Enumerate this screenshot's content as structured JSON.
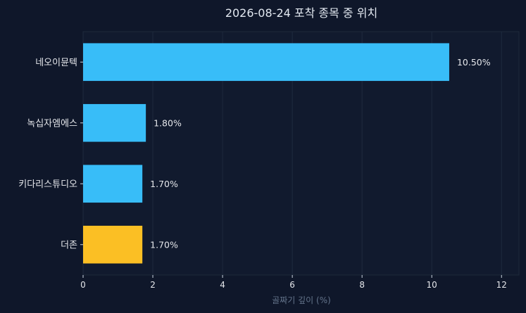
{
  "chart_data": {
    "type": "bar",
    "orientation": "horizontal",
    "title": "2026-08-24 포착 종목 중 위치",
    "xlabel": "골짜기 깊이 (%)",
    "ylabel": "",
    "xlim": [
      0,
      12.5
    ],
    "xticks": [
      0,
      2,
      4,
      6,
      8,
      10,
      12
    ],
    "grid": true,
    "categories": [
      "네오이뮨텍",
      "녹십자엠에스",
      "키다리스튜디오",
      "더존"
    ],
    "values": [
      10.5,
      1.8,
      1.7,
      1.7
    ],
    "value_labels": [
      "10.50%",
      "1.80%",
      "1.70%",
      "1.70%"
    ],
    "colors": [
      "#38bdf8",
      "#38bdf8",
      "#38bdf8",
      "#fbbf24"
    ]
  }
}
